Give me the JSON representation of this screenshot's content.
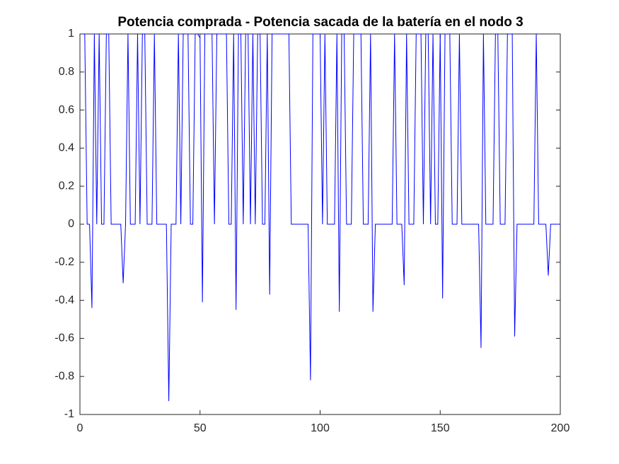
{
  "chart_data": {
    "type": "line",
    "title": "Potencia comprada - Potencia sacada de la batería en el nodo 3",
    "x": [
      1,
      2,
      3,
      4,
      5,
      6,
      7,
      8,
      9,
      10,
      11,
      12,
      13,
      14,
      15,
      16,
      17,
      18,
      19,
      20,
      21,
      22,
      23,
      24,
      25,
      26,
      27,
      28,
      29,
      30,
      31,
      32,
      33,
      34,
      35,
      36,
      37,
      38,
      39,
      40,
      41,
      42,
      43,
      44,
      45,
      46,
      47,
      48,
      49,
      50,
      51,
      52,
      53,
      54,
      55,
      56,
      57,
      58,
      59,
      60,
      61,
      62,
      63,
      64,
      65,
      66,
      67,
      68,
      69,
      70,
      71,
      72,
      73,
      74,
      75,
      76,
      77,
      78,
      79,
      80,
      81,
      82,
      83,
      84,
      85,
      86,
      87,
      88,
      89,
      90,
      91,
      92,
      93,
      94,
      95,
      96,
      97,
      98,
      99,
      100,
      101,
      102,
      103,
      104,
      105,
      106,
      107,
      108,
      109,
      110,
      111,
      112,
      113,
      114,
      115,
      116,
      117,
      118,
      119,
      120,
      121,
      122,
      123,
      124,
      125,
      126,
      127,
      128,
      129,
      130,
      131,
      132,
      133,
      134,
      135,
      136,
      137,
      138,
      139,
      140,
      141,
      142,
      143,
      144,
      145,
      146,
      147,
      148,
      149,
      150,
      151,
      152,
      153,
      154,
      155,
      156,
      157,
      158,
      159,
      160,
      161,
      162,
      163,
      164,
      165,
      166,
      167,
      168,
      169,
      170,
      171,
      172,
      173,
      174,
      175,
      176,
      177,
      178,
      179,
      180,
      181,
      182,
      183,
      184,
      185,
      186,
      187,
      188,
      189,
      190,
      191,
      192,
      193,
      194,
      195,
      196,
      197,
      198,
      199,
      200
    ],
    "series": [
      {
        "color": "#0000ff",
        "values": [
          1,
          1,
          0,
          0,
          -0.44,
          1,
          0,
          1,
          0,
          0,
          1,
          1,
          0,
          0,
          0,
          0,
          0,
          -0.31,
          0,
          1,
          0,
          0,
          0,
          1,
          0,
          1,
          1,
          0,
          0,
          0,
          1,
          0,
          0,
          0,
          0,
          0,
          -0.93,
          0,
          0,
          0,
          1,
          0,
          1,
          1,
          1,
          0,
          0,
          1,
          1,
          0.98,
          -0.41,
          1,
          1,
          1,
          1,
          0,
          1,
          1,
          1,
          1,
          1,
          0,
          0,
          1,
          -0.45,
          1,
          1,
          0,
          1,
          1,
          0,
          1,
          0,
          1,
          1,
          0,
          0,
          1,
          -0.37,
          1,
          1,
          1,
          1,
          1,
          1,
          1,
          1,
          0,
          0,
          0,
          0,
          0,
          0,
          0,
          0,
          -0.82,
          1,
          1,
          1,
          1,
          0,
          1,
          0,
          0,
          0,
          0,
          1,
          -0.46,
          1,
          1,
          0,
          0,
          0,
          1,
          1,
          1,
          1,
          0,
          0,
          0,
          1,
          -0.46,
          0,
          0,
          0,
          0,
          0,
          0,
          0,
          0,
          1,
          0,
          0,
          0,
          -0.32,
          1,
          0,
          0,
          0,
          1,
          1,
          1,
          0,
          1,
          1,
          0,
          1,
          0,
          0,
          1,
          -0.39,
          1,
          1,
          1,
          0,
          0,
          0,
          1,
          0,
          0,
          0,
          0,
          0,
          0,
          0,
          0,
          -0.65,
          1,
          0,
          0,
          0,
          0,
          1,
          1,
          0,
          0,
          0,
          1,
          1,
          1,
          -0.59,
          0,
          0,
          0,
          0,
          0,
          0,
          0,
          0,
          1,
          0,
          0,
          0,
          0,
          -0.27,
          0,
          0,
          0,
          0,
          0
        ]
      }
    ],
    "xlim": [
      0,
      200
    ],
    "xticks": [
      0,
      50,
      100,
      150,
      200
    ],
    "ylim": [
      -1,
      1
    ],
    "yticks": [
      -1,
      -0.8,
      -0.6,
      -0.4,
      -0.2,
      0,
      0.2,
      0.4,
      0.6,
      0.8,
      1
    ],
    "grid": false
  }
}
